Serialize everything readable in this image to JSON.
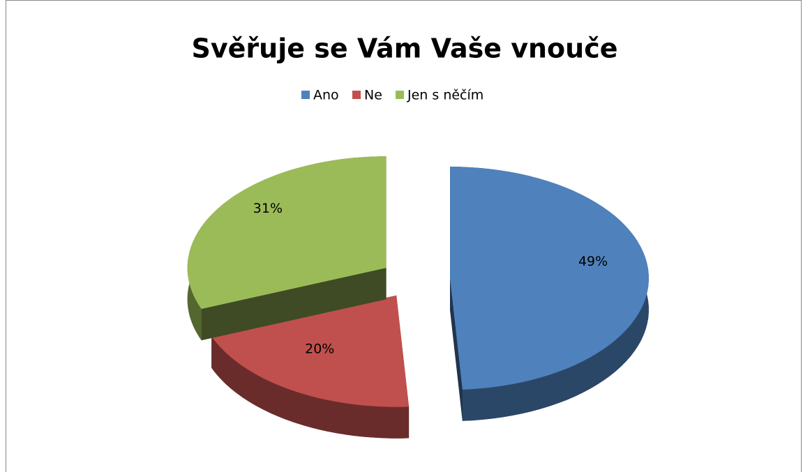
{
  "chart_data": {
    "type": "pie",
    "title": "Svěřuje se Vám Vaše vnouče",
    "categories": [
      "Ano",
      "Ne",
      "Jen s něčím"
    ],
    "values": [
      49,
      20,
      31
    ],
    "value_labels": [
      "49%",
      "20%",
      "31%"
    ],
    "colors": [
      "#4f81bd",
      "#c0504d",
      "#9bbb59"
    ],
    "legend": "top"
  }
}
